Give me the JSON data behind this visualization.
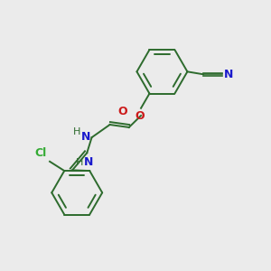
{
  "bg_color": "#ebebeb",
  "bond_color": "#2d6b2d",
  "N_color": "#1a1acc",
  "O_color": "#cc1a1a",
  "Cl_color": "#33aa33",
  "lw": 1.4,
  "xlim": [
    0,
    10
  ],
  "ylim": [
    0,
    10
  ],
  "ring_r": 0.95,
  "upper_ring": [
    6.0,
    7.4
  ],
  "lower_ring": [
    2.8,
    2.85
  ]
}
